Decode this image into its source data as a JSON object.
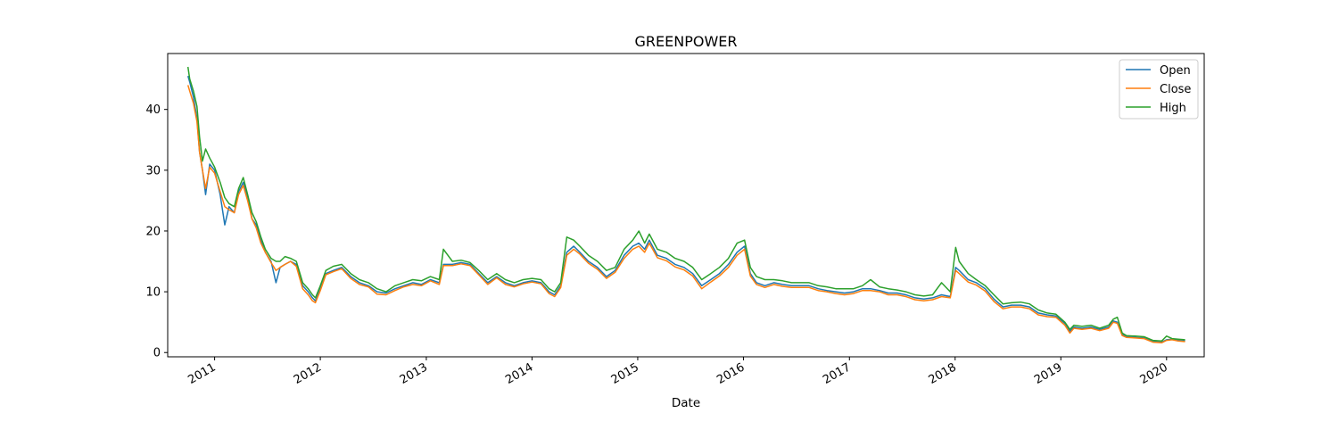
{
  "chart_data": {
    "type": "line",
    "title": "GREENPOWER",
    "xlabel": "Date",
    "ylabel": "",
    "xlim": [
      "2010-07-23",
      "2020-05-10"
    ],
    "ylim": [
      -0.7,
      49.2
    ],
    "grid": false,
    "legend_position": "top-right",
    "x_ticks": [
      "2011",
      "2012",
      "2013",
      "2014",
      "2015",
      "2016",
      "2017",
      "2018",
      "2019",
      "2020"
    ],
    "y_ticks": [
      0,
      10,
      20,
      30,
      40
    ],
    "x": [
      "2010-10-01",
      "2010-10-07",
      "2010-10-20",
      "2010-11-01",
      "2010-11-10",
      "2010-11-20",
      "2010-12-01",
      "2010-12-15",
      "2011-01-01",
      "2011-01-20",
      "2011-02-05",
      "2011-02-20",
      "2011-03-10",
      "2011-03-25",
      "2011-04-10",
      "2011-04-25",
      "2011-05-10",
      "2011-05-25",
      "2011-06-10",
      "2011-06-25",
      "2011-07-15",
      "2011-08-01",
      "2011-08-15",
      "2011-09-01",
      "2011-09-20",
      "2011-10-10",
      "2011-11-01",
      "2011-11-20",
      "2011-12-05",
      "2011-12-15",
      "2012-01-01",
      "2012-01-20",
      "2012-02-15",
      "2012-03-15",
      "2012-04-15",
      "2012-05-15",
      "2012-06-15",
      "2012-07-15",
      "2012-08-15",
      "2012-09-15",
      "2012-10-15",
      "2012-11-15",
      "2012-12-15",
      "2013-01-15",
      "2013-02-15",
      "2013-03-01",
      "2013-04-01",
      "2013-05-01",
      "2013-06-01",
      "2013-07-01",
      "2013-08-01",
      "2013-09-01",
      "2013-10-01",
      "2013-11-01",
      "2013-12-01",
      "2014-01-01",
      "2014-02-01",
      "2014-03-01",
      "2014-03-20",
      "2014-04-10",
      "2014-05-01",
      "2014-05-25",
      "2014-06-15",
      "2014-07-15",
      "2014-08-15",
      "2014-09-15",
      "2014-10-15",
      "2014-11-15",
      "2014-12-15",
      "2015-01-05",
      "2015-01-25",
      "2015-02-10",
      "2015-03-10",
      "2015-04-10",
      "2015-05-10",
      "2015-06-10",
      "2015-07-10",
      "2015-08-10",
      "2015-09-10",
      "2015-10-10",
      "2015-11-10",
      "2015-12-10",
      "2016-01-05",
      "2016-01-25",
      "2016-02-15",
      "2016-03-15",
      "2016-04-15",
      "2016-05-15",
      "2016-06-15",
      "2016-07-15",
      "2016-08-15",
      "2016-09-15",
      "2016-10-15",
      "2016-11-15",
      "2016-12-15",
      "2017-01-15",
      "2017-02-15",
      "2017-03-15",
      "2017-04-15",
      "2017-05-15",
      "2017-06-15",
      "2017-07-15",
      "2017-08-15",
      "2017-09-15",
      "2017-10-15",
      "2017-11-15",
      "2017-12-15",
      "2018-01-03",
      "2018-01-15",
      "2018-02-15",
      "2018-03-15",
      "2018-04-15",
      "2018-05-15",
      "2018-06-15",
      "2018-07-15",
      "2018-08-15",
      "2018-09-15",
      "2018-10-15",
      "2018-11-15",
      "2018-12-15",
      "2019-01-15",
      "2019-02-01",
      "2019-02-15",
      "2019-03-15",
      "2019-04-15",
      "2019-05-15",
      "2019-06-15",
      "2019-07-01",
      "2019-07-15",
      "2019-08-01",
      "2019-08-15",
      "2019-09-15",
      "2019-10-15",
      "2019-11-15",
      "2019-12-15",
      "2020-01-01",
      "2020-01-20",
      "2020-02-10",
      "2020-03-05"
    ],
    "series": [
      {
        "name": "Open",
        "color": "#1f77b4",
        "values": [
          45.5,
          44.5,
          42.0,
          38.5,
          33.0,
          30.0,
          26.0,
          31.0,
          30.0,
          26.0,
          21.0,
          24.0,
          23.0,
          26.5,
          28.0,
          25.5,
          22.0,
          21.0,
          18.5,
          16.5,
          15.0,
          11.5,
          14.0,
          14.5,
          15.0,
          14.5,
          11.0,
          10.0,
          9.0,
          8.5,
          10.5,
          13.0,
          13.5,
          14.0,
          12.5,
          11.5,
          11.0,
          10.0,
          9.8,
          10.5,
          11.0,
          11.5,
          11.2,
          12.0,
          11.5,
          14.5,
          14.5,
          14.8,
          14.5,
          13.0,
          11.5,
          12.5,
          11.5,
          11.0,
          11.5,
          11.8,
          11.5,
          10.0,
          9.5,
          11.0,
          16.5,
          17.5,
          16.5,
          15.0,
          14.0,
          12.5,
          13.5,
          16.0,
          17.5,
          18.0,
          17.0,
          18.5,
          16.0,
          15.5,
          14.5,
          14.0,
          13.0,
          11.0,
          12.0,
          13.0,
          14.5,
          16.5,
          17.5,
          13.0,
          11.5,
          11.0,
          11.5,
          11.2,
          11.0,
          11.0,
          11.0,
          10.5,
          10.2,
          10.0,
          9.8,
          10.0,
          10.5,
          10.5,
          10.2,
          9.8,
          9.8,
          9.5,
          9.0,
          8.8,
          9.0,
          9.5,
          9.2,
          14.0,
          13.5,
          12.0,
          11.5,
          10.5,
          8.8,
          7.5,
          7.8,
          7.8,
          7.5,
          6.5,
          6.2,
          6.0,
          4.8,
          3.5,
          4.2,
          4.0,
          4.2,
          3.8,
          4.2,
          5.2,
          5.0,
          3.0,
          2.6,
          2.5,
          2.4,
          1.8,
          1.7,
          2.1,
          2.2,
          2.0,
          1.9
        ]
      },
      {
        "name": "Close",
        "color": "#ff7f0e",
        "values": [
          44.0,
          43.0,
          41.0,
          38.0,
          33.0,
          30.0,
          27.0,
          30.5,
          29.5,
          26.5,
          24.0,
          23.5,
          23.0,
          26.0,
          27.5,
          25.0,
          22.0,
          20.5,
          18.0,
          16.5,
          14.8,
          13.5,
          14.0,
          14.5,
          15.0,
          14.2,
          10.5,
          9.5,
          8.5,
          8.2,
          10.2,
          12.8,
          13.3,
          13.8,
          12.2,
          11.2,
          10.8,
          9.6,
          9.5,
          10.2,
          10.8,
          11.2,
          11.0,
          11.8,
          11.2,
          14.3,
          14.3,
          14.6,
          14.3,
          12.8,
          11.2,
          12.3,
          11.2,
          10.8,
          11.3,
          11.6,
          11.3,
          9.7,
          9.2,
          10.7,
          16.0,
          17.0,
          16.2,
          14.7,
          13.7,
          12.2,
          13.2,
          15.5,
          17.0,
          17.5,
          16.5,
          18.0,
          15.6,
          15.1,
          14.1,
          13.6,
          12.6,
          10.5,
          11.6,
          12.6,
          14.0,
          16.0,
          17.0,
          12.6,
          11.2,
          10.7,
          11.2,
          10.9,
          10.7,
          10.7,
          10.7,
          10.2,
          10.0,
          9.7,
          9.5,
          9.7,
          10.2,
          10.2,
          10.0,
          9.5,
          9.5,
          9.2,
          8.7,
          8.5,
          8.7,
          9.2,
          9.0,
          13.5,
          13.0,
          11.6,
          11.1,
          10.1,
          8.4,
          7.2,
          7.5,
          7.5,
          7.2,
          6.2,
          5.9,
          5.8,
          4.5,
          3.2,
          4.0,
          3.8,
          4.0,
          3.6,
          4.0,
          5.0,
          4.8,
          2.8,
          2.5,
          2.4,
          2.3,
          1.7,
          1.6,
          2.0,
          2.1,
          1.9,
          1.8
        ]
      },
      {
        "name": "High",
        "color": "#2ca02c",
        "values": [
          47.0,
          45.0,
          43.0,
          40.5,
          35.5,
          31.5,
          33.5,
          32.0,
          30.5,
          28.0,
          25.5,
          24.5,
          24.0,
          27.0,
          28.8,
          26.0,
          23.0,
          21.5,
          19.0,
          17.0,
          15.5,
          15.0,
          15.0,
          15.8,
          15.5,
          15.0,
          11.5,
          10.5,
          9.5,
          9.0,
          11.0,
          13.5,
          14.2,
          14.5,
          13.0,
          12.0,
          11.5,
          10.5,
          10.0,
          11.0,
          11.5,
          12.0,
          11.8,
          12.5,
          12.0,
          17.0,
          15.0,
          15.2,
          14.8,
          13.5,
          12.0,
          13.0,
          12.0,
          11.5,
          12.0,
          12.2,
          12.0,
          10.5,
          10.0,
          11.5,
          19.0,
          18.5,
          17.5,
          16.0,
          15.0,
          13.5,
          14.0,
          17.0,
          18.5,
          20.0,
          18.0,
          19.5,
          17.0,
          16.5,
          15.5,
          15.0,
          14.0,
          12.0,
          13.0,
          14.0,
          15.5,
          18.0,
          18.5,
          14.0,
          12.5,
          12.0,
          12.0,
          11.8,
          11.5,
          11.5,
          11.5,
          11.0,
          10.8,
          10.5,
          10.5,
          10.5,
          11.0,
          12.0,
          10.8,
          10.5,
          10.3,
          10.0,
          9.5,
          9.3,
          9.5,
          11.5,
          10.0,
          17.3,
          15.0,
          13.0,
          12.0,
          11.0,
          9.5,
          8.0,
          8.2,
          8.3,
          8.0,
          7.0,
          6.5,
          6.3,
          5.0,
          3.8,
          4.5,
          4.3,
          4.5,
          4.0,
          4.5,
          5.5,
          5.8,
          3.2,
          2.8,
          2.7,
          2.6,
          2.0,
          1.9,
          2.7,
          2.3,
          2.2,
          2.1
        ]
      }
    ]
  }
}
